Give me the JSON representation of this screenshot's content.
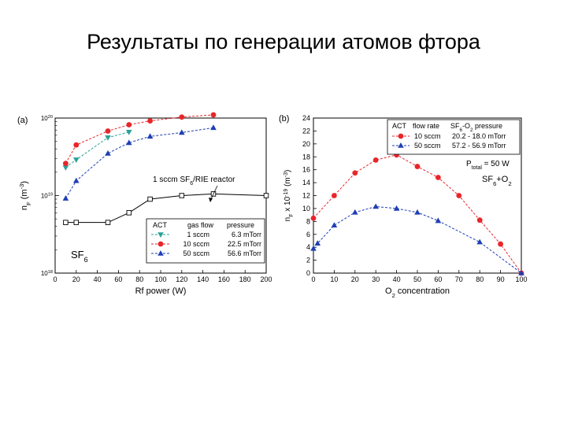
{
  "slide": {
    "title": "Результаты по генерации атомов фтора"
  },
  "chart_data": [
    {
      "type": "line",
      "panel_label": "(a)",
      "xlabel": "Rf power (W)",
      "ylabel": "nF (m⁻³)",
      "ylabel_main": "n",
      "ylabel_sub": "F",
      "ylabel_unit": "(m",
      "ylabel_exp": "-3",
      "ylabel_close": ")",
      "xlim": [
        0,
        200
      ],
      "ylim": [
        1e+18,
        1e+20
      ],
      "yscale": "log",
      "x_ticks": [
        0,
        20,
        40,
        60,
        80,
        100,
        120,
        140,
        160,
        180,
        200
      ],
      "y_ticks": [
        {
          "value": 1e+18,
          "base": "10",
          "exp": "18"
        },
        {
          "value": 1e+19,
          "base": "10",
          "exp": "19"
        },
        {
          "value": 1e+20,
          "base": "10",
          "exp": "20"
        }
      ],
      "legend": {
        "position": "bottom-right",
        "header": [
          "ACT",
          "gas flow",
          "pressure"
        ],
        "rows": [
          {
            "flow": "1 sccm",
            "pressure": "6.3 mTorr"
          },
          {
            "flow": "10 sccm",
            "pressure": "22.5 mTorr"
          },
          {
            "flow": "50 sccm",
            "pressure": "56.6 mTorr"
          }
        ]
      },
      "annotation_reactor": "1 sccm SF6/RIE reactor",
      "annotation_reactor_pre": "1 sccm SF",
      "annotation_reactor_sub": "6",
      "annotation_reactor_post": "/RIE reactor",
      "annotation_gas": "SF6",
      "annotation_gas_main": "SF",
      "annotation_gas_sub": "6",
      "series": [
        {
          "name": "1 sccm",
          "color": "#2aa198",
          "marker": "triangle-down",
          "dash": "dashed",
          "x": [
            10,
            20,
            50,
            70
          ],
          "y": [
            2.3e+19,
            2.9e+19,
            5.6e+19,
            6.6e+19
          ]
        },
        {
          "name": "10 sccm",
          "color": "#e8262a",
          "marker": "circle",
          "dash": "dashed",
          "x": [
            10,
            20,
            50,
            70,
            90,
            120,
            150
          ],
          "y": [
            2.6e+19,
            4.5e+19,
            6.8e+19,
            8.2e+19,
            9.2e+19,
            1.03e+20,
            1.1e+20
          ]
        },
        {
          "name": "50 sccm",
          "color": "#1f3fb5",
          "marker": "triangle-up",
          "dash": "dashed",
          "x": [
            10,
            20,
            50,
            70,
            90,
            120,
            150
          ],
          "y": [
            9.2e+18,
            1.55e+19,
            3.5e+19,
            4.8e+19,
            5.8e+19,
            6.5e+19,
            7.5e+19
          ]
        },
        {
          "name": "1 sccm SF6/RIE reactor",
          "color": "#000000",
          "marker": "square-open",
          "dash": "solid",
          "x": [
            10,
            20,
            50,
            70,
            90,
            120,
            150,
            200
          ],
          "y": [
            4.5e+18,
            4.5e+18,
            4.5e+18,
            6e+18,
            9e+18,
            1e+19,
            1.05e+19,
            1e+19
          ]
        }
      ]
    },
    {
      "type": "line",
      "panel_label": "(b)",
      "xlabel": "O2 concentration",
      "xlabel_main": "O",
      "xlabel_sub": "2",
      "xlabel_post": " concentration",
      "ylabel": "nF x 10⁻¹⁹ (m⁻³)",
      "ylabel_main": "n",
      "ylabel_sub": "F",
      "ylabel_mid": " x 10",
      "ylabel_exp1": "-19",
      "ylabel_unit": " (m",
      "ylabel_exp2": "-3",
      "ylabel_close": ")",
      "xlim": [
        0,
        100
      ],
      "ylim": [
        0,
        24
      ],
      "x_ticks": [
        0,
        10,
        20,
        30,
        40,
        50,
        60,
        70,
        80,
        90,
        100
      ],
      "y_ticks": [
        0,
        2,
        4,
        6,
        8,
        10,
        12,
        14,
        16,
        18,
        20,
        22,
        24
      ],
      "legend": {
        "position": "top-right",
        "header": [
          "ACT",
          "flow rate",
          "SF6-O2 pressure"
        ],
        "header3_main": "SF",
        "header3_sub": "6",
        "header3_mid": "-O",
        "header3_sub2": "2",
        "header3_post": " pressure",
        "rows": [
          {
            "flow": "10 sccm",
            "pressure": "20.2 - 18.0 mTorr"
          },
          {
            "flow": "50 sccm",
            "pressure": "57.2 - 56.9 mTorr"
          }
        ]
      },
      "annotation_power": "Ptotal = 50 W",
      "annotation_power_main": "P",
      "annotation_power_sub": "total",
      "annotation_power_post": " = 50 W",
      "annotation_gas": "SF6+O2",
      "annotation_gas_main": "SF",
      "annotation_gas_sub": "6",
      "annotation_gas_mid": "+O",
      "annotation_gas_sub2": "2",
      "series": [
        {
          "name": "10 sccm",
          "color": "#e8262a",
          "marker": "circle",
          "x": [
            0,
            10,
            20,
            30,
            40,
            50,
            60,
            70,
            80,
            90,
            100
          ],
          "y": [
            8.5,
            12.0,
            15.5,
            17.5,
            18.3,
            16.5,
            14.8,
            12.0,
            8.2,
            4.5,
            0.0
          ]
        },
        {
          "name": "50 sccm",
          "color": "#1f3fb5",
          "marker": "triangle-up",
          "x": [
            0,
            2,
            10,
            20,
            30,
            40,
            50,
            60,
            80,
            100
          ],
          "y": [
            3.8,
            4.6,
            7.4,
            9.4,
            10.3,
            10.0,
            9.4,
            8.1,
            4.8,
            0.0
          ]
        }
      ]
    }
  ]
}
